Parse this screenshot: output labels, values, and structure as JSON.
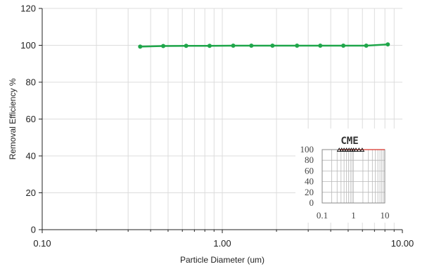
{
  "chart_data": {
    "type": "line",
    "x_scale": "log",
    "xlim": [
      0.1,
      10
    ],
    "ylim": [
      0,
      120
    ],
    "y_ticks": [
      0,
      20,
      40,
      60,
      80,
      100,
      120
    ],
    "x_tick_labels": [
      "0.10",
      "1.00",
      "10.00"
    ],
    "y_tick_labels": [
      "0",
      "20",
      "40",
      "60",
      "80",
      "100",
      "120"
    ],
    "xlabel": "Particle Diameter (um)",
    "ylabel": "Removal Efficiency %",
    "grid": true,
    "series": [
      {
        "color": "#1fa64a",
        "x": [
          0.35,
          0.47,
          0.63,
          0.85,
          1.15,
          1.45,
          1.9,
          2.6,
          3.5,
          4.7,
          6.3,
          8.3
        ],
        "y": [
          99.3,
          99.6,
          99.7,
          99.7,
          99.8,
          99.8,
          99.8,
          99.8,
          99.8,
          99.8,
          99.8,
          100.5
        ]
      }
    ],
    "inset": {
      "type": "scatter",
      "title": "CME",
      "x_scale": "log",
      "xlim": [
        0.1,
        10
      ],
      "ylim": [
        0,
        100
      ],
      "y_tick_labels": [
        "100",
        "80",
        "60",
        "40",
        "20",
        "0"
      ],
      "x_tick_labels": [
        "0.1",
        "1",
        "10"
      ],
      "marker": "triangle",
      "line_color": "#d9342b",
      "x": [
        0.35,
        0.42,
        0.5,
        0.6,
        0.72,
        0.85,
        1.0,
        1.2,
        1.5,
        1.9
      ],
      "y": [
        100,
        100,
        100,
        100,
        100,
        100,
        100,
        100,
        100,
        100
      ]
    }
  }
}
